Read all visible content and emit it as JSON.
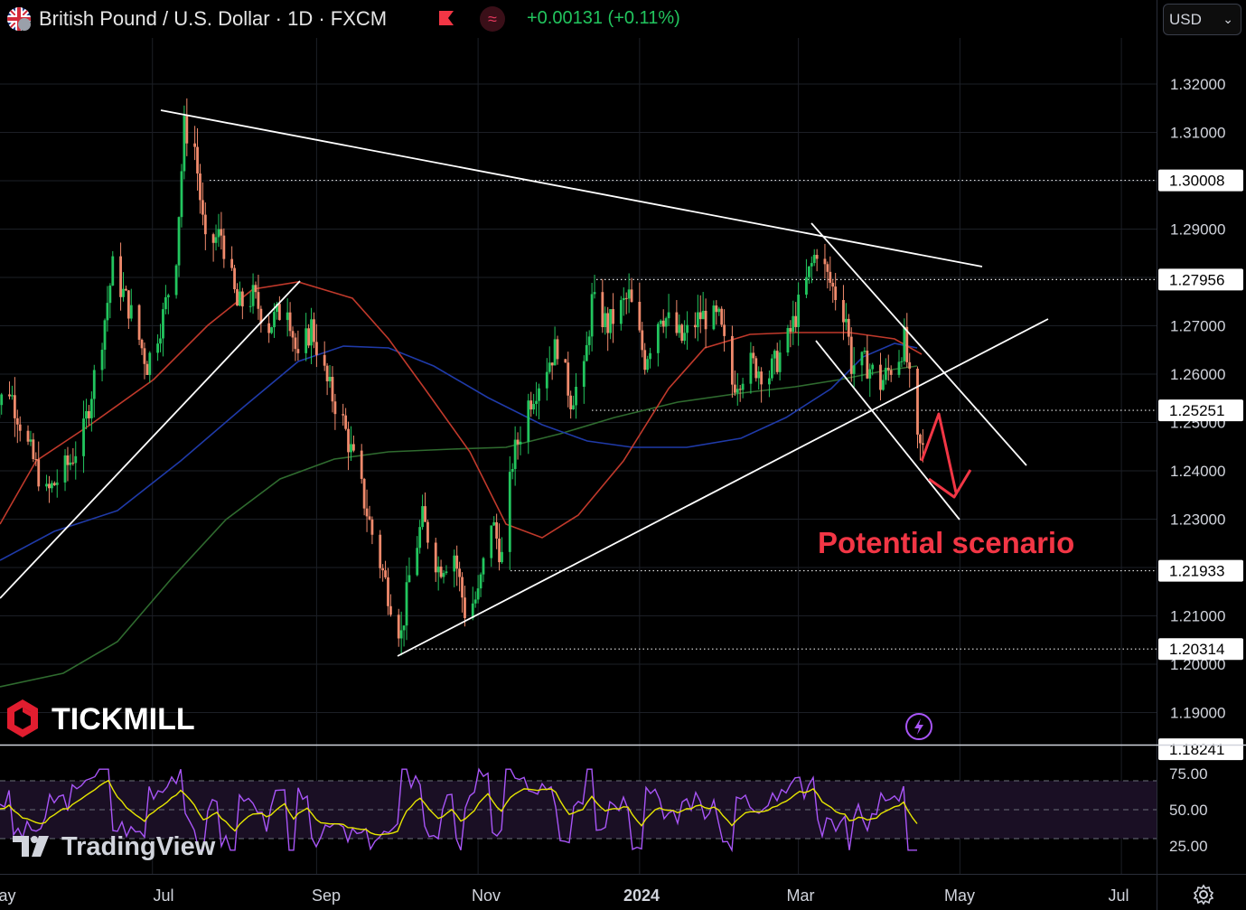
{
  "header": {
    "title": "British Pound / U.S. Dollar · 1D · FXCM",
    "change": "+0.00131 (+0.11%)",
    "currency": "USD",
    "colors": {
      "up": "#22c55e",
      "tag": "#f23645"
    }
  },
  "annotation": {
    "text": "Potential scenario",
    "color": "#f23645"
  },
  "watermarks": {
    "broker": "TICKMILL",
    "platform": "TradingView"
  },
  "icons": [
    "uk-flag-icon",
    "flag-marker-icon",
    "wave-indicator-icon",
    "chevron-down-icon",
    "lightning-icon",
    "gear-icon"
  ],
  "chart_data": [
    {
      "type": "line",
      "subtype": "candlestick",
      "title": "British Pound / U.S. Dollar · 1D · FXCM",
      "x_tick_labels": [
        "ay",
        "Jul",
        "Sep",
        "Nov",
        "2024",
        "Mar",
        "May",
        "Jul"
      ],
      "y_ticks": [
        "1.32000",
        "1.31000",
        "1.29000",
        "1.27000",
        "1.26000",
        "1.25000",
        "1.24000",
        "1.23000",
        "1.21000",
        "1.20000",
        "1.19000"
      ],
      "ylim": [
        1.18241,
        1.3297
      ],
      "grid": true,
      "horizontal_levels": [
        {
          "value": 1.30008,
          "label": "1.30008"
        },
        {
          "value": 1.27956,
          "label": "1.27956"
        },
        {
          "value": 1.25251,
          "label": "1.25251"
        },
        {
          "value": 1.21933,
          "label": "1.21933"
        },
        {
          "value": 1.20314,
          "label": "1.20314"
        }
      ],
      "bottom_label": "1.18241",
      "series": [
        {
          "type": "candles",
          "close_path": [
            [
              "2023-05-01",
              1.252
            ],
            [
              "2023-05-08",
              1.257
            ],
            [
              "2023-05-15",
              1.245
            ],
            [
              "2023-05-22",
              1.235
            ],
            [
              "2023-05-31",
              1.242
            ],
            [
              "2023-06-05",
              1.248
            ],
            [
              "2023-06-12",
              1.268
            ],
            [
              "2023-06-16",
              1.282
            ],
            [
              "2023-06-22",
              1.274
            ],
            [
              "2023-06-29",
              1.262
            ],
            [
              "2023-07-05",
              1.272
            ],
            [
              "2023-07-10",
              1.285
            ],
            [
              "2023-07-13",
              1.311
            ],
            [
              "2023-07-17",
              1.307
            ],
            [
              "2023-07-21",
              1.286
            ],
            [
              "2023-07-27",
              1.289
            ],
            [
              "2023-08-02",
              1.274
            ],
            [
              "2023-08-08",
              1.276
            ],
            [
              "2023-08-14",
              1.27
            ],
            [
              "2023-08-21",
              1.275
            ],
            [
              "2023-08-25",
              1.262
            ],
            [
              "2023-08-30",
              1.27
            ],
            [
              "2023-09-05",
              1.258
            ],
            [
              "2023-09-11",
              1.25
            ],
            [
              "2023-09-18",
              1.236
            ],
            [
              "2023-09-22",
              1.227
            ],
            [
              "2023-09-28",
              1.215
            ],
            [
              "2023-10-03",
              1.206
            ],
            [
              "2023-10-06",
              1.218
            ],
            [
              "2023-10-11",
              1.23
            ],
            [
              "2023-10-17",
              1.22
            ],
            [
              "2023-10-23",
              1.223
            ],
            [
              "2023-10-27",
              1.211
            ],
            [
              "2023-11-01",
              1.214
            ],
            [
              "2023-11-06",
              1.23
            ],
            [
              "2023-11-10",
              1.222
            ],
            [
              "2023-11-14",
              1.242
            ],
            [
              "2023-11-20",
              1.254
            ],
            [
              "2023-11-27",
              1.262
            ],
            [
              "2023-12-01",
              1.266
            ],
            [
              "2023-12-06",
              1.255
            ],
            [
              "2023-12-11",
              1.26
            ],
            [
              "2023-12-14",
              1.275
            ],
            [
              "2023-12-20",
              1.27
            ],
            [
              "2023-12-28",
              1.276
            ],
            [
              "2024-01-03",
              1.263
            ],
            [
              "2024-01-09",
              1.273
            ],
            [
              "2024-01-17",
              1.267
            ],
            [
              "2024-01-24",
              1.272
            ],
            [
              "2024-01-31",
              1.271
            ],
            [
              "2024-02-05",
              1.258
            ],
            [
              "2024-02-12",
              1.262
            ],
            [
              "2024-02-19",
              1.26
            ],
            [
              "2024-02-26",
              1.267
            ],
            [
              "2024-03-04",
              1.279
            ],
            [
              "2024-03-08",
              1.286
            ],
            [
              "2024-03-12",
              1.28
            ],
            [
              "2024-03-19",
              1.272
            ],
            [
              "2024-03-21",
              1.262
            ],
            [
              "2024-03-27",
              1.262
            ],
            [
              "2024-04-01",
              1.258
            ],
            [
              "2024-04-08",
              1.264
            ],
            [
              "2024-04-10",
              1.267
            ],
            [
              "2024-04-15",
              1.245
            ],
            [
              "2024-04-18",
              1.244
            ]
          ]
        },
        {
          "name": "",
          "color": "#c0392b",
          "type": "moving-average"
        },
        {
          "name": "",
          "color": "#1f3aa8",
          "type": "moving-average"
        },
        {
          "name": "",
          "color": "#2f6b2f",
          "type": "moving-average"
        }
      ],
      "annotations": [
        "Potential scenario"
      ]
    },
    {
      "type": "line",
      "subtype": "oscillator",
      "y_ticks": [
        "75.00",
        "50.00",
        "25.00"
      ],
      "ylim": [
        18,
        82
      ],
      "bands": [
        70,
        50,
        30
      ],
      "series": [
        {
          "name": "",
          "color": "#a855f7",
          "type": "oscillator"
        },
        {
          "name": "",
          "color": "#e6e600",
          "type": "signal"
        }
      ]
    }
  ]
}
